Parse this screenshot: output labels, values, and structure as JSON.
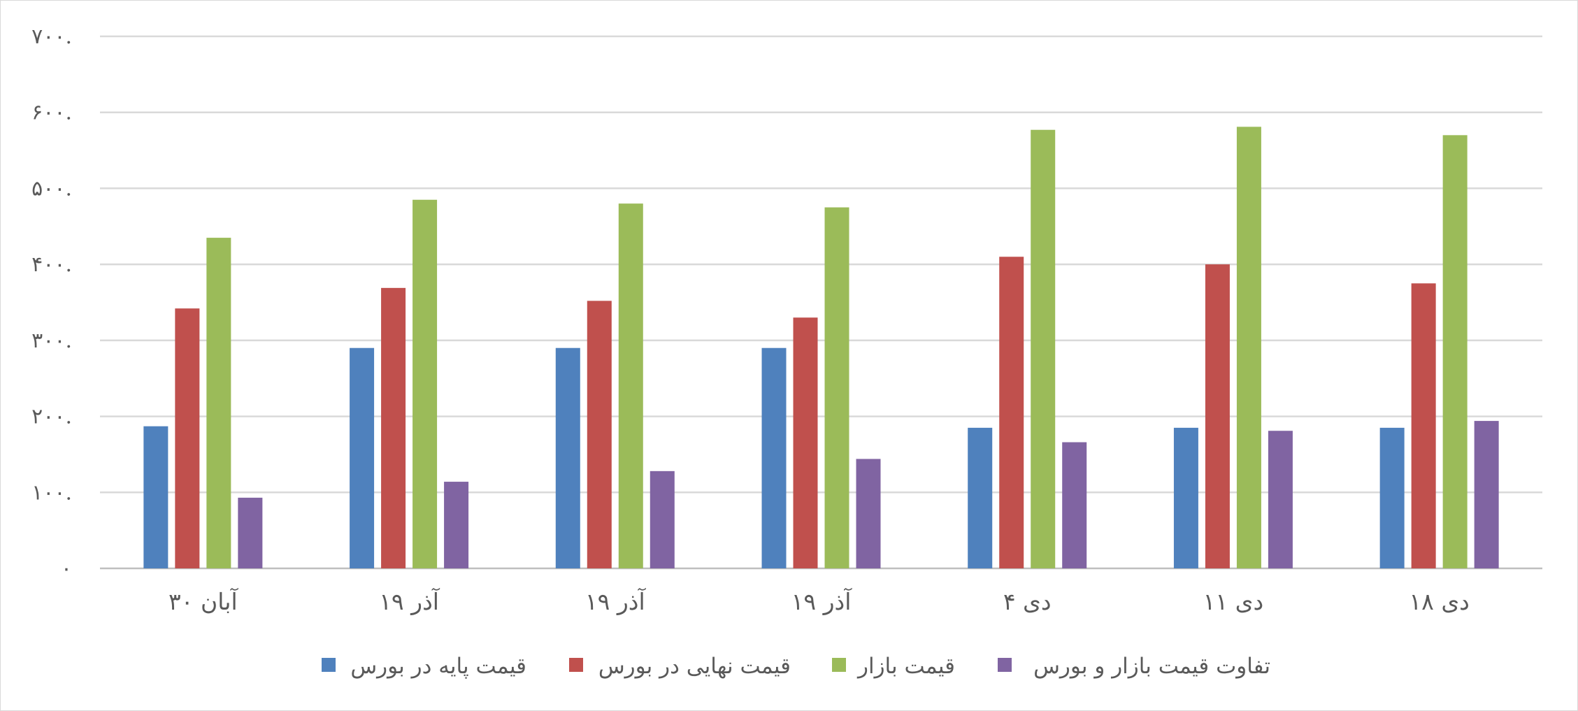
{
  "chart_data": {
    "type": "bar",
    "title": "",
    "xlabel": "",
    "ylabel": "",
    "categories": [
      "۳۰ آبان",
      "۱۹ آذر",
      "۱۹ آذر",
      "۱۹ آذر",
      "۴ دی",
      "۱۱ دی",
      "۱۸ دی"
    ],
    "ylim": [
      0,
      700000
    ],
    "y_tick_values": [
      0,
      100000,
      200000,
      300000,
      400000,
      500000,
      600000,
      700000
    ],
    "y_tick_labels": [
      "۰",
      "۱۰۰.",
      "۲۰۰.",
      "۳۰۰.",
      "۴۰۰.",
      "۵۰۰.",
      "۶۰۰.",
      "۷۰۰."
    ],
    "grid": true,
    "legend_position": "bottom",
    "series": [
      {
        "name": "قیمت پایه در بورس",
        "color": "#4f81bd",
        "values": [
          187000,
          290000,
          290000,
          290000,
          185000,
          185000,
          185000
        ]
      },
      {
        "name": "قیمت نهایی در بورس",
        "color": "#c0504d",
        "values": [
          342000,
          369000,
          352000,
          330000,
          410000,
          400000,
          375000
        ]
      },
      {
        "name": "قیمت بازار",
        "color": "#9bbb59",
        "values": [
          435000,
          485000,
          480000,
          475000,
          577000,
          581000,
          570000
        ]
      },
      {
        "name": "تفاوت قیمت بازار و بورس",
        "color": "#8064a2",
        "values": [
          93000,
          114000,
          128000,
          144000,
          166000,
          181000,
          194000
        ]
      }
    ]
  }
}
